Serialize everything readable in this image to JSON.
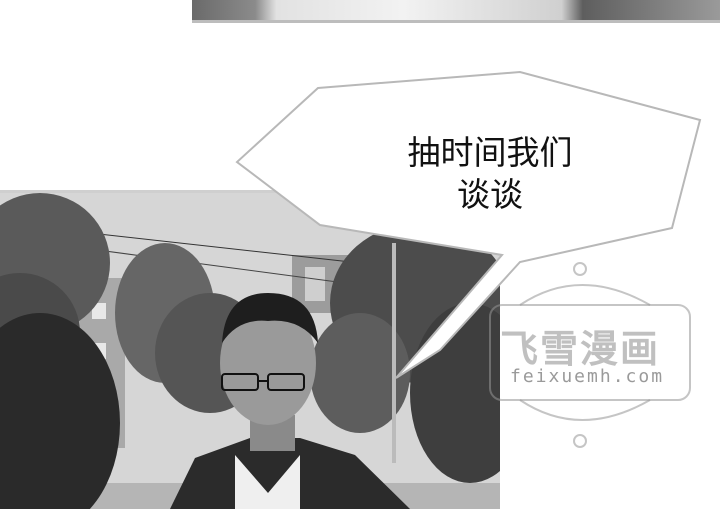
{
  "bubble": {
    "line1": "抽时间我们",
    "line2": "谈谈"
  },
  "watermark": {
    "title": "飞雪漫画",
    "url": "feixuemh.com"
  },
  "colors": {
    "ink": "#111111",
    "paper": "#ffffff",
    "watermark": "#8c8c8c"
  }
}
